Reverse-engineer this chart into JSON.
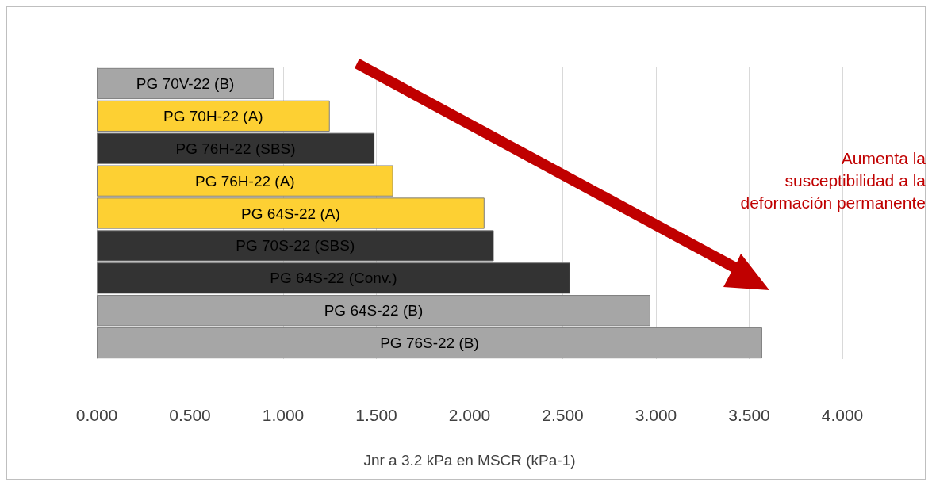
{
  "chart_data": {
    "type": "bar",
    "orientation": "horizontal",
    "xlabel": "Jnr a 3.2 kPa en MSCR (kPa-1)",
    "categories": [
      "PG 70V-22 (B)",
      "PG 70H-22 (A)",
      "PG 76H-22 (SBS)",
      "PG 76H-22 (A)",
      "PG 64S-22 (A)",
      "PG 70S-22 (SBS)",
      "PG 64S-22 (Conv.)",
      "PG 64S-22 (B)",
      "PG 76S-22 (B)"
    ],
    "values": [
      0.95,
      1.25,
      1.49,
      1.59,
      2.08,
      2.13,
      2.54,
      2.97,
      3.57
    ],
    "colors": [
      "#a6a6a6",
      "#fdd033",
      "#333333",
      "#fdd033",
      "#fdd033",
      "#333333",
      "#333333",
      "#a6a6a6",
      "#a6a6a6"
    ],
    "xlim": [
      0,
      4
    ],
    "xticks": [
      {
        "value": 0,
        "label": "0.000"
      },
      {
        "value": 0.5,
        "label": "0.500"
      },
      {
        "value": 1,
        "label": "1.000"
      },
      {
        "value": 1.5,
        "label": "1.500"
      },
      {
        "value": 2,
        "label": "2.000"
      },
      {
        "value": 2.5,
        "label": "2.500"
      },
      {
        "value": 3,
        "label": "3.000"
      },
      {
        "value": 3.5,
        "label": "3.500"
      },
      {
        "value": 4,
        "label": "4.000"
      }
    ],
    "grid": "x",
    "tick_labels": "x",
    "annotations": [
      "Aumenta la\nsusceptibilidad a la\ndeformación permanente"
    ]
  }
}
